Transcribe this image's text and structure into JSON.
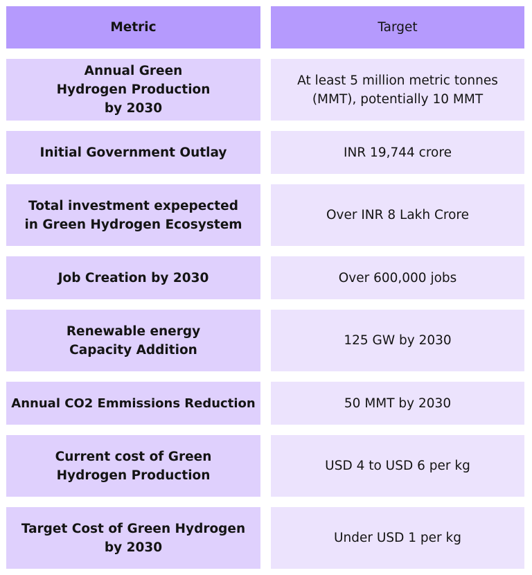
{
  "header": {
    "metric": "Metric",
    "target": "Target"
  },
  "rows": [
    {
      "metric": "Annual Green Hydrogen Production by 2030",
      "target": "At least 5 million metric tonnes (MMT), potentially 10 MMT"
    },
    {
      "metric": "Initial Government Outlay",
      "target": "INR 19,744 crore"
    },
    {
      "metric": "Total investment expepected in Green Hydrogen Ecosystem",
      "target": "Over INR 8 Lakh Crore"
    },
    {
      "metric": "Job Creation by 2030",
      "target": "Over 600,000 jobs"
    },
    {
      "metric": "Renewable energy Capacity Addition",
      "target": "125 GW by 2030"
    },
    {
      "metric": "Annual CO2 Emmissions Reduction",
      "target": "50 MMT by 2030"
    },
    {
      "metric": "Current cost of Green Hydrogen Production",
      "target": "USD 4 to USD 6 per kg"
    },
    {
      "metric": "Target Cost of Green Hydrogen by 2030",
      "target": "Under USD 1 per kg"
    }
  ],
  "colors": {
    "header_bg": "#b59afd",
    "metric_bg": "#dfd0fd",
    "target_bg": "#ece3fd"
  }
}
